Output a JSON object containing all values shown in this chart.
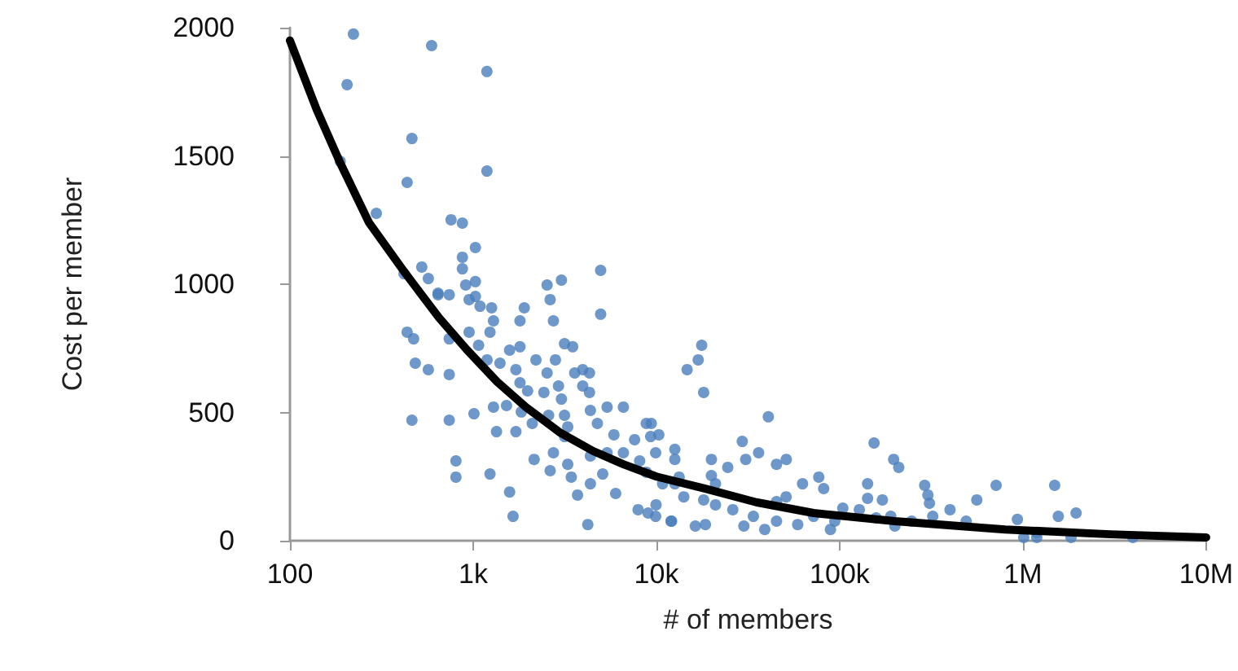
{
  "chart_data": {
    "type": "scatter",
    "xlabel": "# of members",
    "ylabel": "Cost per member",
    "log": "x",
    "grid": false,
    "xlim": [
      100,
      10000000
    ],
    "xticks": [
      {
        "value": 100,
        "label": "100"
      },
      {
        "value": 1000,
        "label": "1k"
      },
      {
        "value": 10000,
        "label": "10k"
      },
      {
        "value": 100000,
        "label": "100k"
      },
      {
        "value": 1000000,
        "label": "1M"
      },
      {
        "value": 10000000,
        "label": "10M"
      }
    ],
    "ylim": [
      0,
      2000
    ],
    "yticks": [
      0,
      500,
      1000,
      1500,
      2000
    ],
    "series": [
      {
        "color": "#4a7ebb",
        "marker": "circle",
        "x": [
          222,
          593,
          1188,
          205,
          463,
          1188,
          188,
          436,
          296,
          757,
          873,
          1028,
          419,
          524,
          569,
          873,
          873,
          910,
          643,
          1028,
          1028,
          643,
          740,
          950,
          1090,
          1260,
          1290,
          1900,
          1800,
          2530,
          3030,
          2630,
          2740,
          4960,
          4960,
          436,
          473,
          740,
          950,
          1235,
          1070,
          1190,
          1400,
          1580,
          1800,
          3150,
          3490,
          483,
          569,
          740,
          1710,
          2200,
          2530,
          2810,
          3580,
          3960,
          4310,
          1800,
          1980,
          2430,
          2920,
          3960,
          4310,
          3030,
          1290,
          1520,
          1830,
          2100,
          463,
          740,
          1010,
          1710,
          1340,
          2580,
          3150,
          4360,
          5380,
          6600,
          3280,
          3150,
          4760,
          5860,
          8800,
          10300,
          7600,
          9300,
          2150,
          2740,
          4360,
          5380,
          6600,
          8100,
          805,
          805,
          1235,
          2630,
          3280,
          3430,
          4360,
          5090,
          5990,
          3710,
          1580,
          1650,
          4220,
          7940,
          9950,
          12600,
          8800,
          13300,
          17660,
          16900,
          14700,
          18100,
          40800,
          29400,
          154000,
          197000,
          210000,
          9370,
          9900,
          12600,
          12600,
          19950,
          24500,
          30700,
          36100,
          51100,
          45200,
          62700,
          76900,
          81800,
          142000,
          142000,
          171000,
          291000,
          303000,
          309000,
          714000,
          1490000,
          1560000,
          1950000,
          933000,
          1010000,
          1190000,
          1190000,
          1830000,
          3980000,
          10800,
          14100,
          18100,
          21000,
          26100,
          33800,
          45200,
          59000,
          72000,
          94000,
          104000,
          128000,
          158000,
          200000,
          247000,
          322000,
          400000,
          490000,
          560000,
          9900,
          12100,
          16300,
          18500,
          30000,
          39000,
          89000,
          190000,
          19950,
          21000,
          51000,
          45200,
          9000,
          12000
        ],
        "values": [
          1975,
          1930,
          1829,
          1778,
          1568,
          1441,
          1479,
          1397,
          1276,
          1251,
          1238,
          1143,
          1041,
          1067,
          1022,
          1105,
          1060,
          997,
          965,
          952,
          1010,
          959,
          959,
          940,
          914,
          908,
          857,
          908,
          857,
          997,
          1016,
          940,
          857,
          1054,
          883,
          813,
          787,
          787,
          813,
          813,
          762,
          705,
          692,
          743,
          756,
          768,
          756,
          692,
          667,
          648,
          667,
          705,
          654,
          705,
          654,
          667,
          654,
          616,
          584,
          578,
          603,
          603,
          578,
          552,
          521,
          527,
          502,
          457,
          470,
          470,
          495,
          425,
          425,
          489,
          489,
          508,
          521,
          521,
          444,
          406,
          457,
          413,
          457,
          413,
          394,
          406,
          317,
          343,
          330,
          343,
          343,
          311,
          311,
          248,
          260,
          273,
          298,
          248,
          222,
          260,
          184,
          178,
          190,
          95,
          63,
          121,
          140,
          222,
          267,
          248,
          762,
          705,
          667,
          578,
          483,
          387,
          381,
          317,
          286,
          457,
          343,
          356,
          317,
          317,
          286,
          317,
          343,
          317,
          298,
          222,
          248,
          203,
          222,
          165,
          159,
          216,
          178,
          146,
          216,
          216,
          95,
          108,
          83,
          13,
          32,
          13,
          13,
          13,
          222,
          171,
          159,
          140,
          121,
          95,
          76,
          63,
          95,
          76,
          127,
          121,
          89,
          57,
          76,
          95,
          121,
          76,
          159,
          95,
          76,
          57,
          63,
          57,
          44,
          44,
          95,
          254,
          222,
          171,
          152,
          108,
          76
        ]
      },
      {
        "type": "line",
        "color": "#000000",
        "marker": "none",
        "line_style": "solid",
        "x": [
          100,
          140,
          188,
          270,
          428,
          650,
          928,
          1350,
          1940,
          3000,
          4500,
          6600,
          10000,
          18500,
          35000,
          72000,
          200000,
          800000,
          3000000,
          10000000
        ],
        "values": [
          1950,
          1680,
          1473,
          1240,
          1041,
          870,
          743,
          620,
          521,
          420,
          350,
          298,
          250,
          203,
          150,
          108,
          76,
          44,
          25,
          13
        ]
      }
    ]
  }
}
